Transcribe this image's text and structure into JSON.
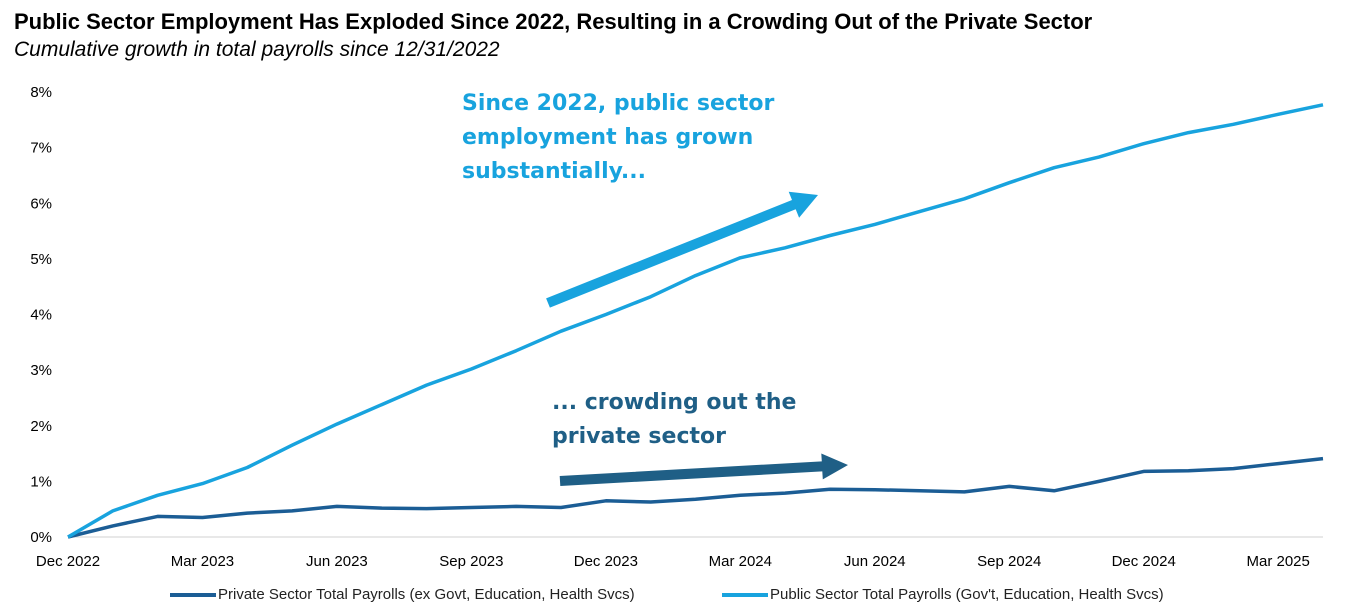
{
  "colors": {
    "private": "#1b5d95",
    "public": "#18a3de",
    "annotation_private": "#1f5f86"
  },
  "chart_data": {
    "type": "line",
    "title": "Public Sector Employment Has Exploded Since 2022, Resulting in a Crowding Out of the Private Sector",
    "subtitle": "Cumulative growth in total payrolls since 12/31/2022",
    "x": [
      "2022-12",
      "2023-01",
      "2023-02",
      "2023-03",
      "2023-04",
      "2023-05",
      "2023-06",
      "2023-07",
      "2023-08",
      "2023-09",
      "2023-10",
      "2023-11",
      "2023-12",
      "2024-01",
      "2024-02",
      "2024-03",
      "2024-04",
      "2024-05",
      "2024-06",
      "2024-07",
      "2024-08",
      "2024-09",
      "2024-10",
      "2024-11",
      "2024-12",
      "2025-01",
      "2025-02",
      "2025-03",
      "2025-04"
    ],
    "x_tick_labels": [
      "Dec 2022",
      "Mar 2023",
      "Jun 2023",
      "Sep 2023",
      "Dec 2023",
      "Mar 2024",
      "Jun 2024",
      "Sep 2024",
      "Dec 2024",
      "Mar 2025"
    ],
    "y_tick_labels": [
      "0%",
      "1%",
      "2%",
      "3%",
      "4%",
      "5%",
      "6%",
      "7%",
      "8%"
    ],
    "ylim": [
      0,
      8
    ],
    "series": [
      {
        "name": "Private Sector Total Payrolls (ex Govt, Education, Health Svcs)",
        "values": [
          0.0,
          0.2,
          0.37,
          0.35,
          0.43,
          0.47,
          0.55,
          0.52,
          0.51,
          0.53,
          0.55,
          0.53,
          0.65,
          0.63,
          0.68,
          0.75,
          0.79,
          0.86,
          0.85,
          0.83,
          0.81,
          0.91,
          0.83,
          1.0,
          1.18,
          1.19,
          1.23,
          1.32,
          1.41
        ]
      },
      {
        "name": "Public Sector Total Payrolls (Gov't, Education, Health Svcs)",
        "values": [
          0.0,
          0.47,
          0.75,
          0.96,
          1.25,
          1.65,
          2.03,
          2.38,
          2.73,
          3.02,
          3.35,
          3.7,
          4.0,
          4.32,
          4.7,
          5.02,
          5.2,
          5.42,
          5.62,
          5.85,
          6.08,
          6.37,
          6.64,
          6.83,
          7.07,
          7.27,
          7.42,
          7.6,
          7.77
        ]
      }
    ],
    "grid": false,
    "legend_position": "bottom",
    "annotations": [
      {
        "text": "Since 2022, public sector employment has grown substantially...",
        "lines": [
          "Since 2022, public sector",
          "employment has grown",
          "substantially..."
        ]
      },
      {
        "text": "... crowding out the private sector",
        "lines": [
          "... crowding out the",
          "private sector"
        ]
      }
    ]
  }
}
